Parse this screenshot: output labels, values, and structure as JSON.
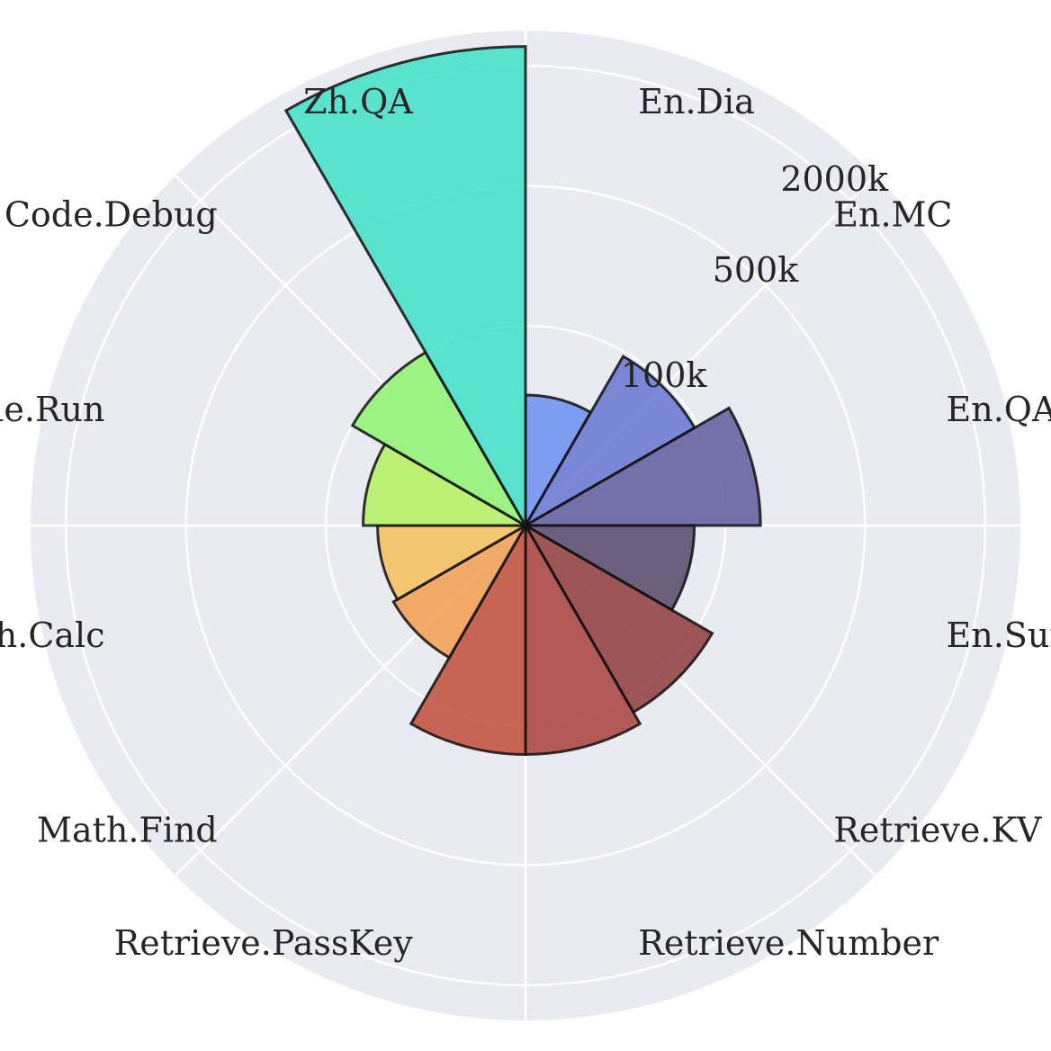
{
  "chart_data": {
    "type": "polar-bar",
    "scale": "log",
    "radial_ticks": [
      {
        "value": 100,
        "label": "100k"
      },
      {
        "value": 500,
        "label": "500k"
      },
      {
        "value": 2000,
        "label": "2000k"
      }
    ],
    "radial_max": 3000,
    "grid": true,
    "background": "#eaeaf2",
    "categories": [
      {
        "label": "En.Dia",
        "value": 45,
        "color": "#6c8ff0"
      },
      {
        "label": "En.MC",
        "value": 95,
        "color": "#6675d1"
      },
      {
        "label": "En.QA",
        "value": 150,
        "color": "#5e5b9e"
      },
      {
        "label": "En.Sum",
        "value": 70,
        "color": "#554768"
      },
      {
        "label": "Retrieve.KV",
        "value": 120,
        "color": "#913b3b"
      },
      {
        "label": "Retrieve.Number",
        "value": 140,
        "color": "#a9403b"
      },
      {
        "label": "Retrieve.PassKey",
        "value": 140,
        "color": "#c24c37"
      },
      {
        "label": "Math.Find",
        "value": 58,
        "color": "#f59d50"
      },
      {
        "label": "Math.Calc",
        "value": 55,
        "color": "#f7bf5a"
      },
      {
        "label": "Code.Run",
        "value": 65,
        "color": "#b5f25f"
      },
      {
        "label": "Code.Debug",
        "value": 100,
        "color": "#8ef570"
      },
      {
        "label": "Zh.QA",
        "value": 2500,
        "color": "#3fe0c8"
      }
    ]
  }
}
